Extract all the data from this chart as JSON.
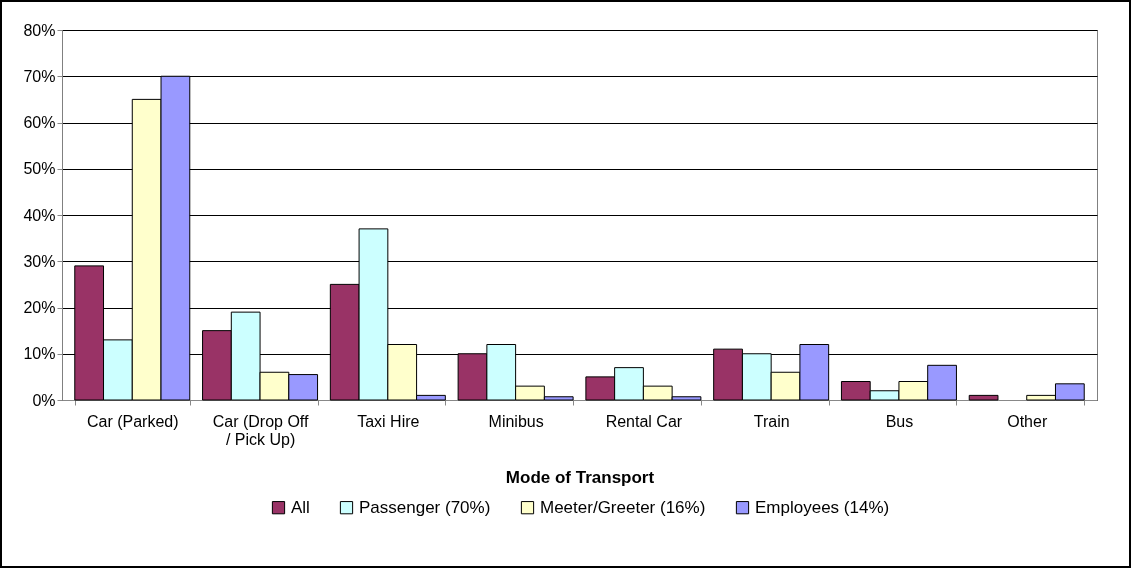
{
  "chart_data": {
    "type": "bar",
    "xlabel": "Mode of Transport",
    "categories": [
      "Car (Parked)",
      "Car (Drop Off / Pick Up)",
      "Taxi Hire",
      "Minibus",
      "Rental Car",
      "Train",
      "Bus",
      "Other"
    ],
    "series": [
      {
        "name": "All",
        "color": "#993366",
        "values": [
          29,
          15,
          25,
          10,
          5,
          11,
          4,
          1
        ]
      },
      {
        "name": "Passenger (70%)",
        "color": "#ccffff",
        "values": [
          13,
          19,
          37,
          12,
          7,
          10,
          2,
          null
        ]
      },
      {
        "name": "Meeter/Greeter (16%)",
        "color": "#ffffcc",
        "values": [
          65,
          6,
          12,
          3,
          3,
          6,
          4,
          1
        ]
      },
      {
        "name": "Employees (14%)",
        "color": "#9999ff",
        "values": [
          70,
          5.5,
          1,
          0.7,
          0.7,
          12,
          7.5,
          3.5
        ]
      }
    ],
    "ylim": [
      0,
      80
    ],
    "yticks": [
      {
        "value": 0,
        "label": "0%"
      },
      {
        "value": 10,
        "label": "10%"
      },
      {
        "value": 20,
        "label": "20%"
      },
      {
        "value": 30,
        "label": "30%"
      },
      {
        "value": 40,
        "label": "40%"
      },
      {
        "value": 50,
        "label": "50%"
      },
      {
        "value": 60,
        "label": "60%"
      },
      {
        "value": 70,
        "label": "70%"
      },
      {
        "value": 80,
        "label": "80%"
      }
    ],
    "grid": "y",
    "legend": "bottom"
  }
}
